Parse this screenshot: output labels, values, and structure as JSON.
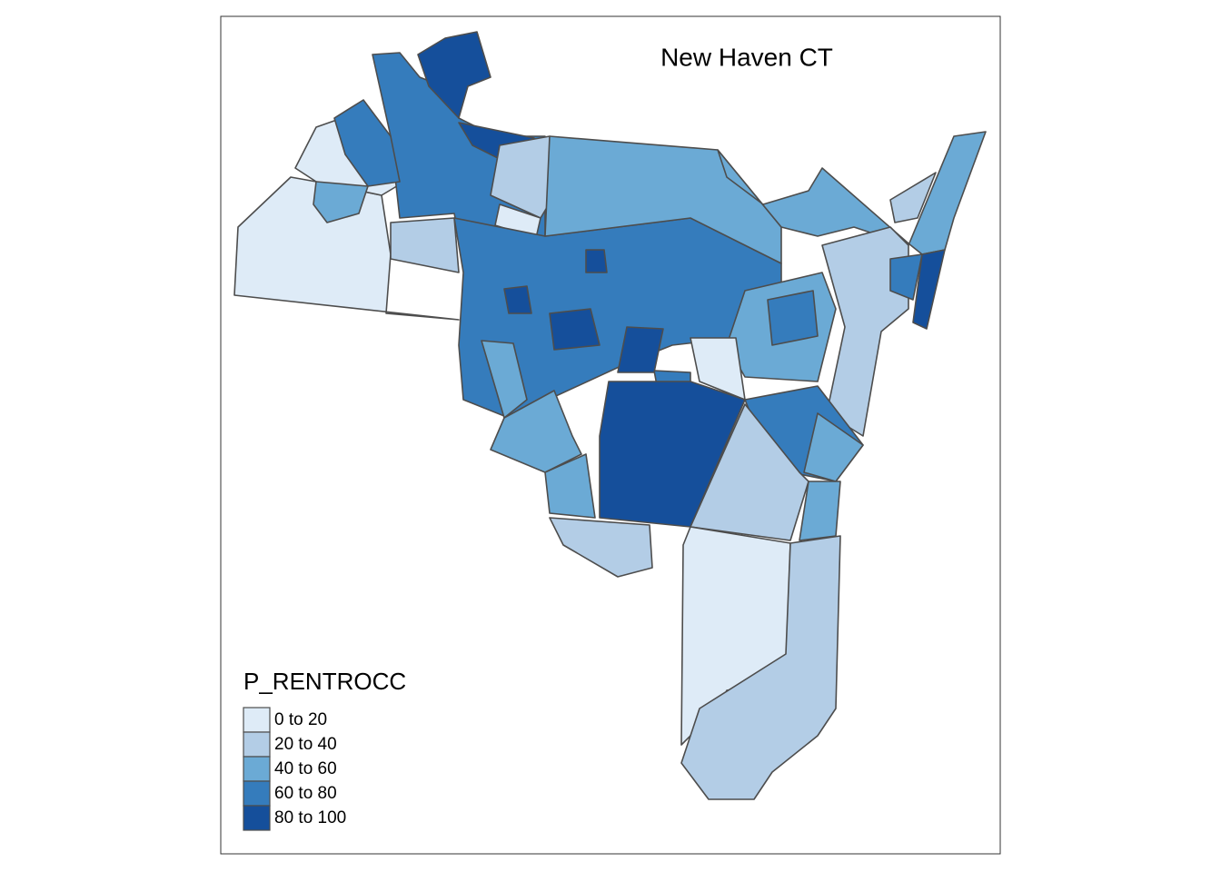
{
  "title": "New Haven CT",
  "legend": {
    "title": "P_RENTROCC",
    "items": [
      {
        "label": "0 to 20",
        "color": "#deebf7"
      },
      {
        "label": "20 to 40",
        "color": "#b3cde6"
      },
      {
        "label": "40 to 60",
        "color": "#6baad5"
      },
      {
        "label": "60 to 80",
        "color": "#357cbc"
      },
      {
        "label": "80 to 100",
        "color": "#154f9b"
      }
    ]
  }
}
